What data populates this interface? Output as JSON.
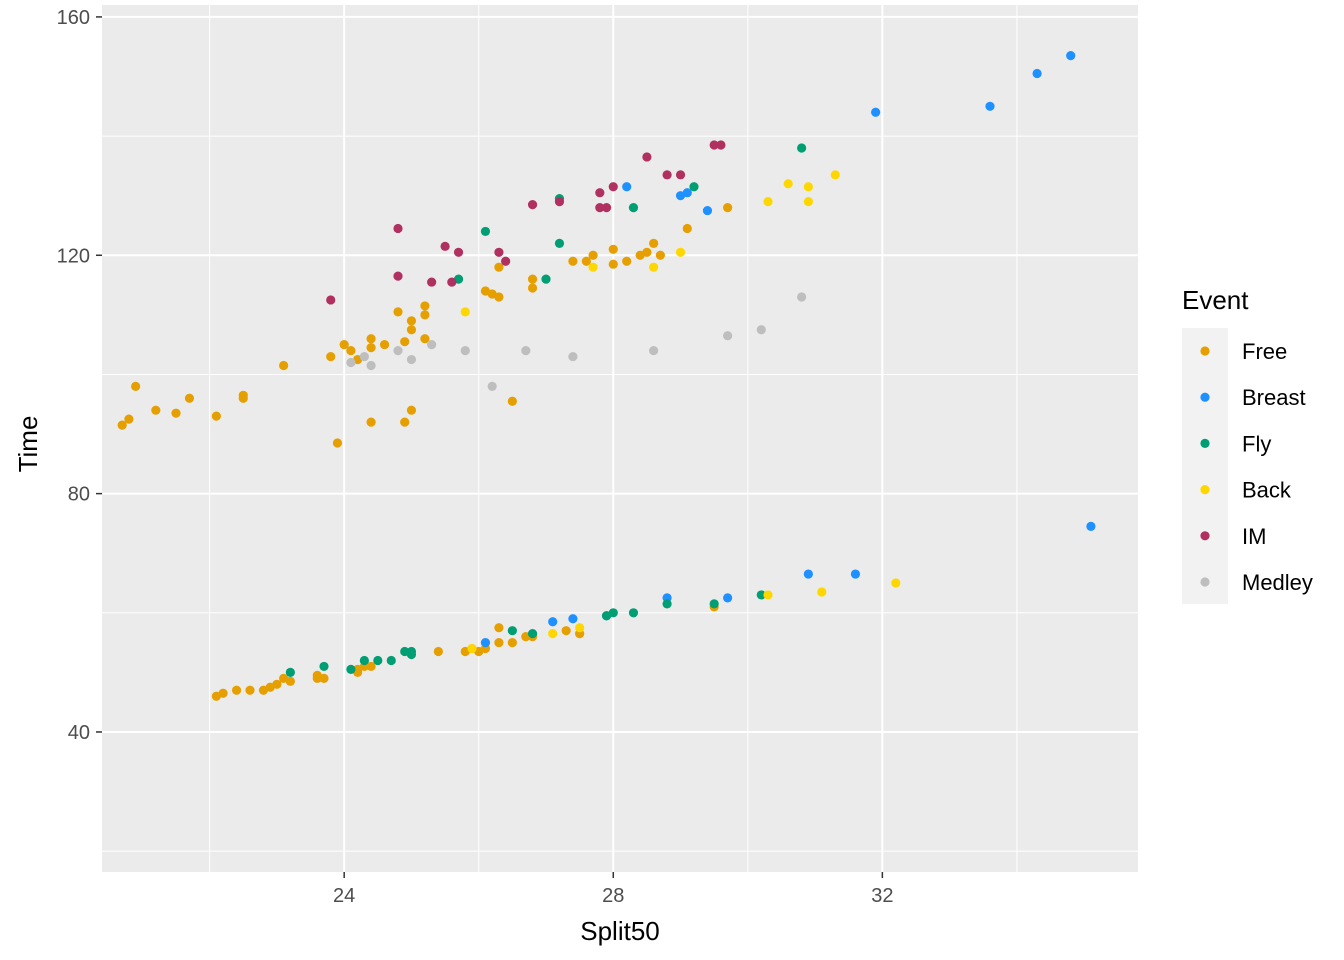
{
  "chart_data": {
    "type": "scatter",
    "title": "",
    "xlabel": "Split50",
    "ylabel": "Time",
    "xlim": [
      20.4,
      35.8
    ],
    "ylim": [
      16.5,
      162
    ],
    "xticks": [
      24,
      28,
      32
    ],
    "xticks_minor": [
      22,
      26,
      30,
      34
    ],
    "yticks": [
      40,
      80,
      120,
      160
    ],
    "yticks_minor": [
      20,
      60,
      100,
      140
    ],
    "grid": true,
    "legend": {
      "title": "Event",
      "position": "right"
    },
    "series": [
      {
        "name": "Free",
        "color": "#E69F00",
        "points": [
          [
            20.7,
            91.5
          ],
          [
            20.8,
            92.5
          ],
          [
            20.9,
            98
          ],
          [
            21.2,
            94
          ],
          [
            21.5,
            93.5
          ],
          [
            21.7,
            96
          ],
          [
            22.1,
            93
          ],
          [
            22.5,
            96.5
          ],
          [
            22.5,
            96
          ],
          [
            23.1,
            101.5
          ],
          [
            23.8,
            103
          ],
          [
            24.0,
            105
          ],
          [
            24.1,
            104
          ],
          [
            24.2,
            102.5
          ],
          [
            24.4,
            104.5
          ],
          [
            24.4,
            106
          ],
          [
            24.6,
            105
          ],
          [
            24.8,
            110.5
          ],
          [
            24.9,
            105.5
          ],
          [
            25.0,
            107.5
          ],
          [
            25.0,
            109
          ],
          [
            25.2,
            110
          ],
          [
            25.2,
            111.5
          ],
          [
            25.2,
            106
          ],
          [
            23.9,
            88.5
          ],
          [
            24.4,
            92
          ],
          [
            24.9,
            92
          ],
          [
            25.0,
            94
          ],
          [
            26.1,
            114
          ],
          [
            26.2,
            113.5
          ],
          [
            26.3,
            113
          ],
          [
            26.3,
            118
          ],
          [
            26.5,
            95.5
          ],
          [
            26.8,
            114.5
          ],
          [
            26.8,
            116
          ],
          [
            27.4,
            119
          ],
          [
            27.6,
            119
          ],
          [
            27.7,
            120
          ],
          [
            28.0,
            118.5
          ],
          [
            28.0,
            121
          ],
          [
            28.2,
            119
          ],
          [
            28.4,
            120
          ],
          [
            28.5,
            120.5
          ],
          [
            28.6,
            122
          ],
          [
            28.7,
            120
          ],
          [
            29.1,
            124.5
          ],
          [
            29.7,
            128
          ],
          [
            22.1,
            46
          ],
          [
            22.2,
            46.5
          ],
          [
            22.4,
            47
          ],
          [
            22.6,
            47
          ],
          [
            22.8,
            47
          ],
          [
            22.9,
            47.5
          ],
          [
            23.0,
            48
          ],
          [
            23.1,
            49
          ],
          [
            23.2,
            48.5
          ],
          [
            23.6,
            49
          ],
          [
            23.6,
            49.5
          ],
          [
            23.7,
            49
          ],
          [
            24.2,
            50
          ],
          [
            24.2,
            50.5
          ],
          [
            24.3,
            51
          ],
          [
            24.4,
            51
          ],
          [
            25.4,
            53.5
          ],
          [
            25.8,
            53.5
          ],
          [
            25.9,
            54
          ],
          [
            26.0,
            53.5
          ],
          [
            26.1,
            54
          ],
          [
            26.3,
            55
          ],
          [
            26.3,
            57.5
          ],
          [
            26.5,
            55
          ],
          [
            26.7,
            56
          ],
          [
            26.8,
            56
          ],
          [
            27.3,
            57
          ],
          [
            27.5,
            56.5
          ],
          [
            29.5,
            61
          ]
        ]
      },
      {
        "name": "Breast",
        "color": "#1E90FF",
        "points": [
          [
            28.2,
            131.5
          ],
          [
            29.0,
            130
          ],
          [
            29.1,
            130.5
          ],
          [
            29.4,
            127.5
          ],
          [
            31.9,
            144
          ],
          [
            33.6,
            145
          ],
          [
            34.3,
            150.5
          ],
          [
            34.8,
            153.5
          ],
          [
            26.1,
            55
          ],
          [
            27.1,
            58.5
          ],
          [
            27.4,
            59
          ],
          [
            27.9,
            59.5
          ],
          [
            28.8,
            62.5
          ],
          [
            29.7,
            62.5
          ],
          [
            30.9,
            66.5
          ],
          [
            31.6,
            66.5
          ],
          [
            35.1,
            74.5
          ]
        ]
      },
      {
        "name": "Fly",
        "color": "#009E73",
        "points": [
          [
            25.7,
            116
          ],
          [
            26.1,
            124
          ],
          [
            27.0,
            116
          ],
          [
            27.2,
            122
          ],
          [
            27.2,
            129.5
          ],
          [
            28.3,
            128
          ],
          [
            29.2,
            131.5
          ],
          [
            30.8,
            138
          ],
          [
            23.2,
            50
          ],
          [
            23.7,
            51
          ],
          [
            24.1,
            50.5
          ],
          [
            24.3,
            52
          ],
          [
            24.5,
            52
          ],
          [
            24.7,
            52
          ],
          [
            24.9,
            53.5
          ],
          [
            25.0,
            53.5
          ],
          [
            25.0,
            53
          ],
          [
            26.5,
            57
          ],
          [
            26.8,
            56.5
          ],
          [
            27.9,
            59.5
          ],
          [
            28.0,
            60
          ],
          [
            28.3,
            60
          ],
          [
            28.8,
            61.5
          ],
          [
            29.5,
            61.5
          ],
          [
            30.2,
            63
          ]
        ]
      },
      {
        "name": "Back",
        "color": "#FFD700",
        "points": [
          [
            25.8,
            110.5
          ],
          [
            27.7,
            118
          ],
          [
            28.6,
            118
          ],
          [
            29.0,
            120.5
          ],
          [
            30.3,
            129
          ],
          [
            30.6,
            132
          ],
          [
            30.9,
            129
          ],
          [
            30.9,
            131.5
          ],
          [
            31.3,
            133.5
          ],
          [
            25.9,
            54
          ],
          [
            27.1,
            56.5
          ],
          [
            27.5,
            57.5
          ],
          [
            30.3,
            63
          ],
          [
            31.1,
            63.5
          ],
          [
            32.2,
            65
          ]
        ]
      },
      {
        "name": "IM",
        "color": "#B03060",
        "points": [
          [
            23.8,
            112.5
          ],
          [
            24.8,
            116.5
          ],
          [
            24.8,
            124.5
          ],
          [
            25.3,
            115.5
          ],
          [
            25.5,
            121.5
          ],
          [
            25.6,
            115.5
          ],
          [
            25.7,
            120.5
          ],
          [
            26.3,
            120.5
          ],
          [
            26.4,
            119
          ],
          [
            26.8,
            128.5
          ],
          [
            27.2,
            129
          ],
          [
            27.8,
            128
          ],
          [
            27.8,
            130.5
          ],
          [
            27.9,
            128
          ],
          [
            28.0,
            131.5
          ],
          [
            28.5,
            136.5
          ],
          [
            28.8,
            133.5
          ],
          [
            29.0,
            133.5
          ],
          [
            29.5,
            138.5
          ],
          [
            29.6,
            138.5
          ]
        ]
      },
      {
        "name": "Medley",
        "color": "#BEBEBE",
        "points": [
          [
            24.1,
            102
          ],
          [
            24.3,
            103
          ],
          [
            24.4,
            101.5
          ],
          [
            24.8,
            104
          ],
          [
            25.0,
            102.5
          ],
          [
            25.3,
            105
          ],
          [
            25.8,
            104
          ],
          [
            26.2,
            98
          ],
          [
            26.7,
            104
          ],
          [
            27.4,
            103
          ],
          [
            28.6,
            104
          ],
          [
            29.7,
            106.5
          ],
          [
            30.2,
            107.5
          ],
          [
            30.8,
            113
          ]
        ]
      }
    ]
  }
}
